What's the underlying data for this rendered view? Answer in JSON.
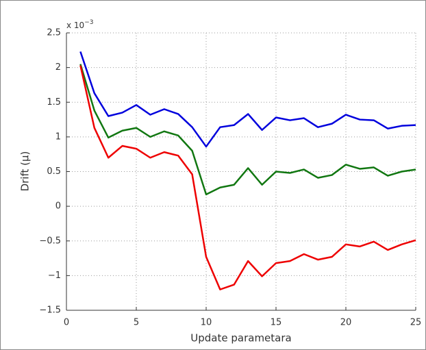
{
  "chart_data": {
    "type": "line",
    "xlabel": "Update parametara",
    "ylabel": "Drift (μ)",
    "y_multiplier": "x 10",
    "y_multiplier_exponent": "−3",
    "x": [
      1,
      2,
      3,
      4,
      5,
      6,
      7,
      8,
      9,
      10,
      11,
      12,
      13,
      14,
      15,
      16,
      17,
      18,
      19,
      20,
      21,
      22,
      23,
      24,
      25
    ],
    "series": [
      {
        "color": "#0000dd",
        "values": [
          2.23,
          1.63,
          1.3,
          1.35,
          1.46,
          1.32,
          1.4,
          1.33,
          1.14,
          0.86,
          1.14,
          1.17,
          1.33,
          1.1,
          1.28,
          1.24,
          1.27,
          1.14,
          1.19,
          1.32,
          1.25,
          1.24,
          1.12,
          1.16,
          1.17
        ]
      },
      {
        "color": "#117711",
        "values": [
          2.05,
          1.38,
          0.99,
          1.09,
          1.13,
          1.0,
          1.08,
          1.02,
          0.8,
          0.17,
          0.27,
          0.31,
          0.55,
          0.31,
          0.5,
          0.48,
          0.53,
          0.41,
          0.45,
          0.6,
          0.54,
          0.56,
          0.44,
          0.5,
          0.53
        ]
      },
      {
        "color": "#ee0000",
        "values": [
          2.03,
          1.13,
          0.7,
          0.87,
          0.83,
          0.7,
          0.78,
          0.73,
          0.46,
          -0.73,
          -1.2,
          -1.13,
          -0.79,
          -1.01,
          -0.82,
          -0.79,
          -0.69,
          -0.77,
          -0.73,
          -0.55,
          -0.58,
          -0.51,
          -0.63,
          -0.55,
          -0.49
        ]
      }
    ],
    "xlim": [
      0,
      25
    ],
    "xticks": [
      0,
      5,
      10,
      15,
      20,
      25
    ],
    "ylim": [
      -1.5,
      2.5
    ],
    "yticks": [
      {
        "value": -1.5,
        "label": "−1.5"
      },
      {
        "value": -1,
        "label": "−1"
      },
      {
        "value": -0.5,
        "label": "−0.5"
      },
      0,
      0.5,
      1,
      1.5,
      2,
      2.5
    ],
    "grid": true
  }
}
